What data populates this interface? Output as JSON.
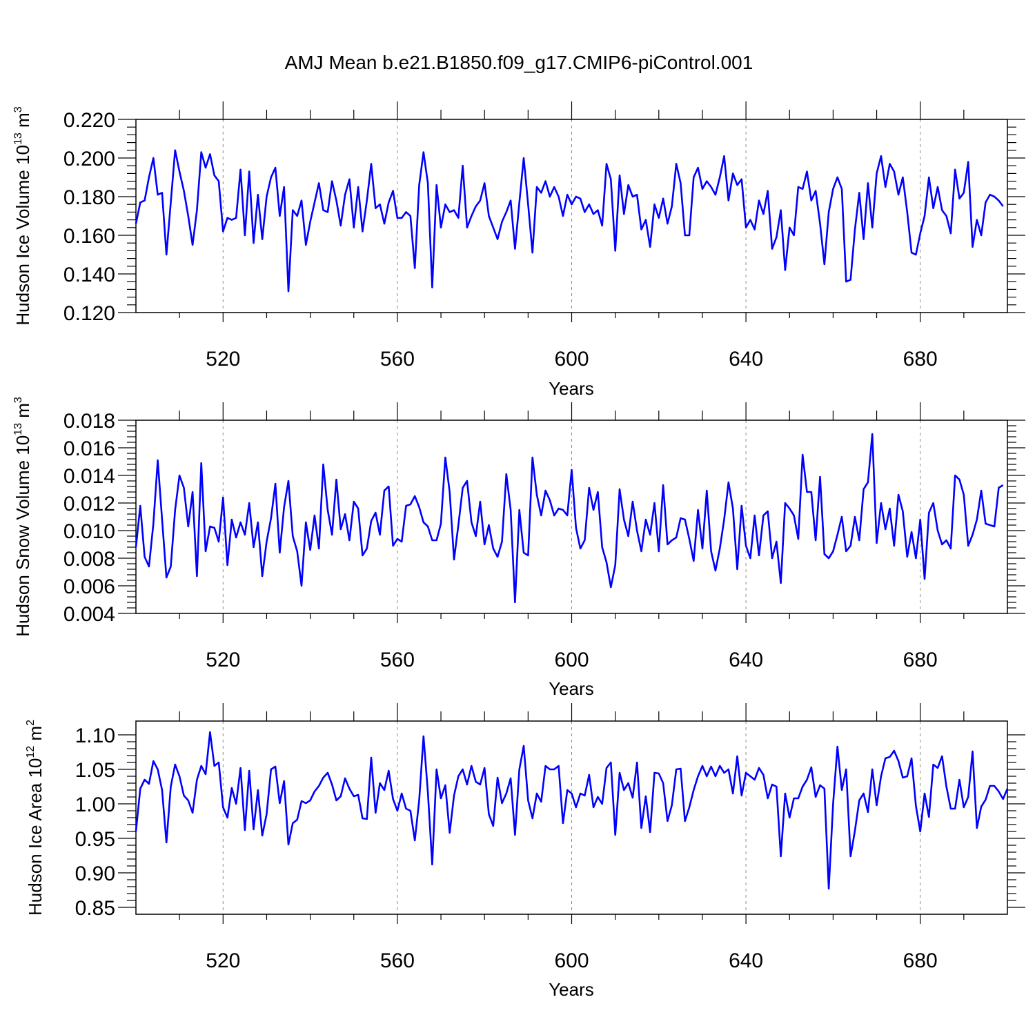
{
  "title": "AMJ Mean b.e21.B1850.f09_g17.CMIP6-piControl.001",
  "colors": {
    "line": "#0000ff",
    "frame": "#000000",
    "grid": "#888888"
  },
  "chart_data": [
    {
      "type": "line",
      "name": "hudson-ice-volume",
      "ylabel": "Hudson Ice Volume 10",
      "ylabel_exp": "13",
      "ylabel_unit": " m",
      "ylabel_unit_exp": "3",
      "xlabel": "Years",
      "xlim": [
        500,
        700
      ],
      "ylim": [
        0.12,
        0.22
      ],
      "xticks": [
        520,
        560,
        600,
        640,
        680
      ],
      "xtick_labels": [
        "520",
        "560",
        "600",
        "640",
        "680"
      ],
      "yticks": [
        0.12,
        0.14,
        0.16,
        0.18,
        0.2,
        0.22
      ],
      "ytick_labels": [
        "0.120",
        "0.140",
        "0.160",
        "0.180",
        "0.200",
        "0.220"
      ],
      "grid_x": true,
      "x_start": 500,
      "values": [
        0.166,
        0.177,
        0.178,
        0.19,
        0.2,
        0.181,
        0.182,
        0.15,
        0.177,
        0.204,
        0.193,
        0.183,
        0.17,
        0.155,
        0.173,
        0.203,
        0.195,
        0.202,
        0.191,
        0.188,
        0.162,
        0.169,
        0.168,
        0.169,
        0.194,
        0.16,
        0.193,
        0.156,
        0.181,
        0.158,
        0.18,
        0.19,
        0.195,
        0.17,
        0.185,
        0.131,
        0.173,
        0.17,
        0.178,
        0.155,
        0.167,
        0.177,
        0.187,
        0.173,
        0.172,
        0.188,
        0.178,
        0.165,
        0.181,
        0.189,
        0.164,
        0.185,
        0.162,
        0.178,
        0.197,
        0.174,
        0.176,
        0.166,
        0.177,
        0.183,
        0.169,
        0.169,
        0.172,
        0.17,
        0.143,
        0.186,
        0.203,
        0.187,
        0.133,
        0.186,
        0.164,
        0.176,
        0.172,
        0.173,
        0.169,
        0.196,
        0.164,
        0.17,
        0.175,
        0.178,
        0.187,
        0.17,
        0.164,
        0.158,
        0.167,
        0.172,
        0.178,
        0.153,
        0.177,
        0.2,
        0.176,
        0.151,
        0.185,
        0.182,
        0.188,
        0.18,
        0.185,
        0.18,
        0.17,
        0.181,
        0.176,
        0.18,
        0.179,
        0.172,
        0.176,
        0.171,
        0.173,
        0.165,
        0.197,
        0.189,
        0.152,
        0.191,
        0.171,
        0.186,
        0.18,
        0.181,
        0.163,
        0.168,
        0.154,
        0.176,
        0.169,
        0.179,
        0.166,
        0.175,
        0.197,
        0.187,
        0.16,
        0.16,
        0.19,
        0.195,
        0.184,
        0.188,
        0.185,
        0.181,
        0.19,
        0.201,
        0.178,
        0.192,
        0.186,
        0.189,
        0.164,
        0.168,
        0.163,
        0.178,
        0.171,
        0.183,
        0.153,
        0.159,
        0.173,
        0.142,
        0.164,
        0.16,
        0.185,
        0.184,
        0.193,
        0.178,
        0.183,
        0.166,
        0.145,
        0.172,
        0.184,
        0.19,
        0.184,
        0.136,
        0.137,
        0.163,
        0.182,
        0.158,
        0.187,
        0.164,
        0.192,
        0.201,
        0.185,
        0.197,
        0.193,
        0.181,
        0.19,
        0.172,
        0.151,
        0.15,
        0.161,
        0.17,
        0.19,
        0.174,
        0.185,
        0.173,
        0.17,
        0.161,
        0.194,
        0.179,
        0.182,
        0.198,
        0.154,
        0.168,
        0.16,
        0.177,
        0.181,
        0.18,
        0.178,
        0.175
      ]
    },
    {
      "type": "line",
      "name": "hudson-snow-volume",
      "ylabel": "Hudson Snow Volume 10",
      "ylabel_exp": "13",
      "ylabel_unit": " m",
      "ylabel_unit_exp": "3",
      "xlabel": "Years",
      "xlim": [
        500,
        700
      ],
      "ylim": [
        0.004,
        0.018
      ],
      "xticks": [
        520,
        560,
        600,
        640,
        680
      ],
      "xtick_labels": [
        "520",
        "560",
        "600",
        "640",
        "680"
      ],
      "yticks": [
        0.004,
        0.006,
        0.008,
        0.01,
        0.012,
        0.014,
        0.016,
        0.018
      ],
      "ytick_labels": [
        "0.004",
        "0.006",
        "0.008",
        "0.010",
        "0.012",
        "0.014",
        "0.016",
        "0.018"
      ],
      "grid_x": true,
      "x_start": 500,
      "values": [
        0.0088,
        0.0118,
        0.0081,
        0.0074,
        0.0105,
        0.0151,
        0.0108,
        0.0066,
        0.0074,
        0.0115,
        0.014,
        0.0131,
        0.0103,
        0.0128,
        0.0067,
        0.0149,
        0.0085,
        0.0103,
        0.0102,
        0.0092,
        0.0124,
        0.0075,
        0.0108,
        0.0095,
        0.0106,
        0.0097,
        0.012,
        0.0088,
        0.0106,
        0.0067,
        0.0092,
        0.0109,
        0.0134,
        0.0084,
        0.0117,
        0.0136,
        0.0096,
        0.0085,
        0.006,
        0.0106,
        0.0086,
        0.0111,
        0.0087,
        0.0148,
        0.0115,
        0.0097,
        0.0137,
        0.0101,
        0.0112,
        0.0093,
        0.0121,
        0.0116,
        0.0082,
        0.0087,
        0.0107,
        0.0113,
        0.0097,
        0.0129,
        0.0132,
        0.0089,
        0.0094,
        0.0092,
        0.0118,
        0.0119,
        0.0125,
        0.0117,
        0.0106,
        0.0103,
        0.0093,
        0.0093,
        0.0105,
        0.0153,
        0.0128,
        0.0079,
        0.0104,
        0.0131,
        0.0136,
        0.0106,
        0.0096,
        0.0121,
        0.009,
        0.0104,
        0.0087,
        0.0081,
        0.0092,
        0.0141,
        0.0115,
        0.0048,
        0.0115,
        0.0084,
        0.0082,
        0.0153,
        0.0126,
        0.0111,
        0.0129,
        0.0122,
        0.0111,
        0.0116,
        0.0115,
        0.0111,
        0.0144,
        0.0102,
        0.0087,
        0.0093,
        0.0131,
        0.0115,
        0.0128,
        0.0088,
        0.0077,
        0.0059,
        0.0075,
        0.013,
        0.0108,
        0.0096,
        0.0121,
        0.01,
        0.0085,
        0.0108,
        0.0097,
        0.012,
        0.0085,
        0.0133,
        0.009,
        0.0093,
        0.0095,
        0.0109,
        0.0108,
        0.0094,
        0.0078,
        0.0115,
        0.0087,
        0.0129,
        0.0085,
        0.0071,
        0.0087,
        0.0108,
        0.0135,
        0.0116,
        0.0072,
        0.0118,
        0.0089,
        0.008,
        0.0111,
        0.0082,
        0.0111,
        0.0114,
        0.008,
        0.0092,
        0.0062,
        0.012,
        0.0116,
        0.0111,
        0.0094,
        0.0155,
        0.0128,
        0.0128,
        0.0093,
        0.0139,
        0.0083,
        0.008,
        0.0085,
        0.0097,
        0.011,
        0.0085,
        0.0089,
        0.011,
        0.0093,
        0.013,
        0.0135,
        0.017,
        0.0091,
        0.012,
        0.0101,
        0.0116,
        0.0089,
        0.0126,
        0.0114,
        0.0081,
        0.0099,
        0.008,
        0.0108,
        0.0065,
        0.0113,
        0.012,
        0.01,
        0.009,
        0.0093,
        0.0087,
        0.014,
        0.0137,
        0.0126,
        0.0089,
        0.0097,
        0.0108,
        0.0129,
        0.0105,
        0.0104,
        0.0103,
        0.0131,
        0.0133
      ]
    },
    {
      "type": "line",
      "name": "hudson-ice-area",
      "ylabel": "Hudson Ice Area 10",
      "ylabel_exp": "12",
      "ylabel_unit": " m",
      "ylabel_unit_exp": "2",
      "xlabel": "Years",
      "xlim": [
        500,
        700
      ],
      "ylim": [
        0.84,
        1.12
      ],
      "xticks": [
        520,
        560,
        600,
        640,
        680
      ],
      "xtick_labels": [
        "520",
        "560",
        "600",
        "640",
        "680"
      ],
      "yticks": [
        0.85,
        0.9,
        0.95,
        1.0,
        1.05,
        1.1
      ],
      "ytick_labels": [
        "0.85",
        "0.90",
        "0.95",
        "1.00",
        "1.05",
        "1.10"
      ],
      "grid_x": true,
      "x_start": 500,
      "values": [
        0.96,
        1.022,
        1.035,
        1.029,
        1.062,
        1.05,
        1.02,
        0.944,
        1.025,
        1.057,
        1.04,
        1.012,
        1.005,
        0.987,
        1.035,
        1.055,
        1.043,
        1.104,
        1.055,
        1.06,
        0.995,
        0.98,
        1.023,
        1.0,
        1.052,
        0.962,
        1.048,
        0.963,
        1.02,
        0.954,
        0.985,
        1.05,
        1.054,
        1.001,
        1.033,
        0.941,
        0.972,
        0.977,
        1.004,
        1.001,
        1.005,
        1.018,
        1.026,
        1.038,
        1.045,
        1.028,
        1.005,
        1.011,
        1.037,
        1.022,
        1.011,
        1.013,
        0.979,
        0.978,
        1.067,
        0.987,
        1.03,
        1.02,
        1.048,
        1.007,
        0.99,
        1.015,
        0.993,
        0.99,
        0.947,
        1.005,
        1.098,
        1.017,
        0.912,
        1.05,
        1.008,
        1.027,
        0.958,
        1.012,
        1.04,
        1.05,
        1.028,
        1.055,
        1.032,
        1.028,
        1.052,
        0.985,
        0.968,
        1.038,
        1.001,
        1.015,
        1.037,
        0.955,
        1.05,
        1.084,
        1.005,
        0.979,
        1.015,
        1.003,
        1.055,
        1.05,
        1.05,
        1.055,
        0.972,
        1.02,
        1.015,
        0.995,
        1.015,
        1.012,
        1.042,
        0.995,
        1.01,
        1.0,
        1.052,
        1.06,
        0.955,
        1.045,
        1.02,
        1.03,
        1.009,
        1.06,
        0.965,
        1.011,
        0.959,
        1.045,
        1.044,
        1.03,
        0.975,
        0.998,
        1.05,
        1.051,
        0.975,
        0.995,
        1.02,
        1.04,
        1.055,
        1.04,
        1.054,
        1.04,
        1.055,
        1.045,
        1.05,
        1.015,
        1.069,
        1.012,
        1.045,
        1.04,
        1.035,
        1.052,
        1.042,
        1.008,
        1.028,
        1.025,
        0.924,
        1.015,
        0.98,
        1.008,
        1.008,
        1.025,
        1.035,
        1.053,
        1.01,
        1.027,
        1.022,
        0.877,
        1.0,
        1.083,
        1.02,
        1.05,
        0.924,
        0.961,
        1.005,
        1.015,
        0.988,
        1.05,
        0.998,
        1.04,
        1.066,
        1.068,
        1.077,
        1.062,
        1.038,
        1.04,
        1.066,
        0.997,
        0.96,
        1.015,
        0.981,
        1.057,
        1.052,
        1.069,
        1.025,
        0.993,
        0.993,
        1.035,
        0.995,
        1.01,
        1.076,
        0.965,
        0.996,
        1.006,
        1.026,
        1.026,
        1.018,
        1.007,
        1.022
      ]
    }
  ]
}
